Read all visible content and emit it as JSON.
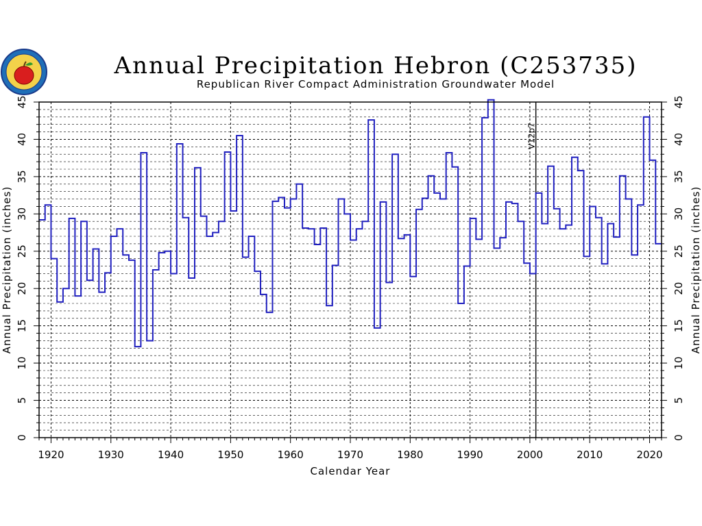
{
  "chart_data": {
    "type": "line",
    "step": true,
    "title": "Annual Precipitation Hebron (C253735)",
    "subtitle": "Republican River Compact Administration Groundwater Model",
    "xlabel": "Calendar Year",
    "ylabel": "Annual Precipitation (inches)",
    "ylabel_right": "Annual Precipitation (inches)",
    "xlim": [
      1918,
      2022
    ],
    "ylim": [
      0,
      45
    ],
    "xticks": [
      1920,
      1930,
      1940,
      1950,
      1960,
      1970,
      1980,
      1990,
      2000,
      2010,
      2020
    ],
    "yticks": [
      0,
      5,
      10,
      15,
      20,
      25,
      30,
      35,
      40,
      45
    ],
    "grid": true,
    "marker": {
      "x": 2001,
      "label": "V12p7"
    },
    "colors": {
      "series": "#1f1fbf",
      "grid": "#000000"
    },
    "logo_icon": "state-seal-apple-icon",
    "x": [
      1918,
      1919,
      1920,
      1921,
      1922,
      1923,
      1924,
      1925,
      1926,
      1927,
      1928,
      1929,
      1930,
      1931,
      1932,
      1933,
      1934,
      1935,
      1936,
      1937,
      1938,
      1939,
      1940,
      1941,
      1942,
      1943,
      1944,
      1945,
      1946,
      1947,
      1948,
      1949,
      1950,
      1951,
      1952,
      1953,
      1954,
      1955,
      1956,
      1957,
      1958,
      1959,
      1960,
      1961,
      1962,
      1963,
      1964,
      1965,
      1966,
      1967,
      1968,
      1969,
      1970,
      1971,
      1972,
      1973,
      1974,
      1975,
      1976,
      1977,
      1978,
      1979,
      1980,
      1981,
      1982,
      1983,
      1984,
      1985,
      1986,
      1987,
      1988,
      1989,
      1990,
      1991,
      1992,
      1993,
      1994,
      1995,
      1996,
      1997,
      1998,
      1999,
      2000,
      2001,
      2002,
      2003,
      2004,
      2005,
      2006,
      2007,
      2008,
      2009,
      2010,
      2011,
      2012,
      2013,
      2014,
      2015,
      2016,
      2017,
      2018,
      2019,
      2020,
      2021
    ],
    "values": [
      29.2,
      31.2,
      24.0,
      18.2,
      20.0,
      29.4,
      19.0,
      29.0,
      21.1,
      25.3,
      19.5,
      22.1,
      27.0,
      28.0,
      24.5,
      23.8,
      12.2,
      38.2,
      13.0,
      22.5,
      24.8,
      25.0,
      22.0,
      39.4,
      29.5,
      21.4,
      36.2,
      29.7,
      27.0,
      27.5,
      29.0,
      38.3,
      30.4,
      40.5,
      24.2,
      27.0,
      22.3,
      19.2,
      16.8,
      31.7,
      32.2,
      30.8,
      32.0,
      34.0,
      28.1,
      28.0,
      25.9,
      28.1,
      17.7,
      23.1,
      32.0,
      30.0,
      26.5,
      28.0,
      29.0,
      42.6,
      14.7,
      31.6,
      20.8,
      38.0,
      26.7,
      27.2,
      21.6,
      30.6,
      32.1,
      35.1,
      32.8,
      32.0,
      38.2,
      36.3,
      18.0,
      23.0,
      29.4,
      26.6,
      42.9,
      45.3,
      25.4,
      26.8,
      31.6,
      31.4,
      29.0,
      23.4,
      22.0,
      32.8,
      28.7,
      36.4,
      30.7,
      28.0,
      28.5,
      37.6,
      35.8,
      24.3,
      31.0,
      29.5,
      23.3,
      28.7,
      26.9,
      35.1,
      32.0,
      24.5,
      31.2,
      43.0,
      37.2,
      26.0
    ]
  }
}
